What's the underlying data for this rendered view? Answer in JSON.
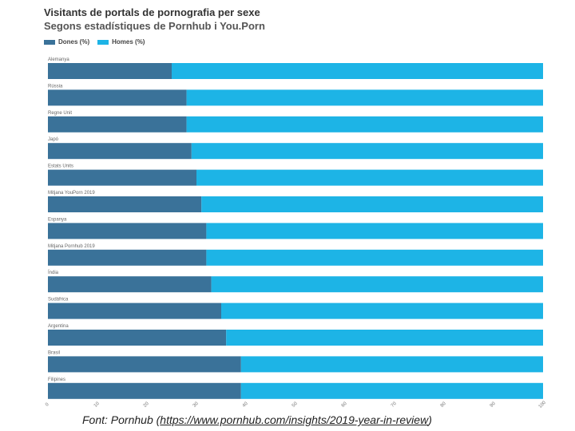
{
  "chart_data": {
    "type": "bar",
    "orientation": "horizontal",
    "stacked": true,
    "title": "Visitants de portals de pornografia per sexe",
    "subtitle": "Segons estadístiques de Pornhub i You.Porn",
    "categories": [
      "Alemanya",
      "Rússia",
      "Regne Unit",
      "Japó",
      "Estats Units",
      "Mitjana YouPorn 2019",
      "Espanya",
      "Mitjana Pornhub 2019",
      "Índia",
      "Sudàfrica",
      "Argentina",
      "Brasil",
      "Filipines"
    ],
    "series": [
      {
        "name": "Dones (%)",
        "color": "#3a7299",
        "values": [
          25,
          28,
          28,
          29,
          30,
          31,
          32,
          32,
          33,
          35,
          36,
          39,
          39
        ]
      },
      {
        "name": "Homes (%)",
        "color": "#1db4e6",
        "values": [
          75,
          72,
          72,
          71,
          70,
          69,
          68,
          68,
          67,
          65,
          64,
          61,
          61
        ]
      }
    ],
    "xlim": [
      0,
      100
    ],
    "xticks": [
      "0",
      "10",
      "20",
      "30",
      "40",
      "50",
      "60",
      "70",
      "80",
      "90",
      "100"
    ],
    "grid": false,
    "legend": "top-left"
  },
  "source": {
    "prefix": "Font: Pornhub (",
    "url": "https://www.pornhub.com/insights/2019-year-in-review",
    "suffix": ")"
  }
}
